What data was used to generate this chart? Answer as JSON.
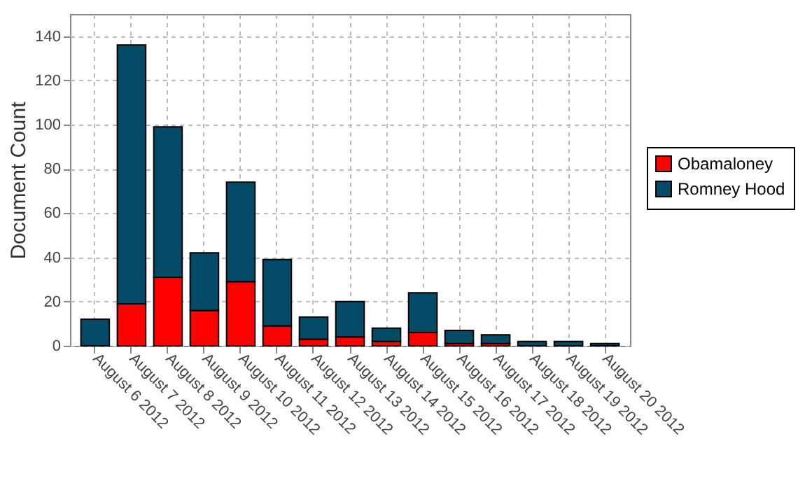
{
  "chart_data": {
    "type": "bar",
    "stacked": true,
    "ylabel": "Document Count",
    "categories": [
      "August 6 2012",
      "August 7 2012",
      "August 8 2012",
      "August 9 2012",
      "August 10 2012",
      "August 11 2012",
      "August 12 2012",
      "August 13 2012",
      "August 14 2012",
      "August 15 2012",
      "August 16 2012",
      "August 17 2012",
      "August 18 2012",
      "August 19 2012",
      "August 20 2012"
    ],
    "series": [
      {
        "name": "Obamaloney",
        "color": "#ff0000",
        "values": [
          null,
          19,
          31,
          16,
          29,
          9,
          3,
          4,
          2,
          6,
          1,
          1,
          null,
          null,
          null
        ]
      },
      {
        "name": "Romney Hood",
        "color": "#034a66",
        "values": [
          12,
          117,
          68,
          26,
          45,
          30,
          10,
          16,
          6,
          18,
          6,
          4,
          2,
          2,
          1
        ]
      }
    ],
    "ylim": [
      0,
      150
    ],
    "yticks": [
      0,
      20,
      40,
      60,
      80,
      100,
      120,
      140
    ],
    "grid": true,
    "legend": "right"
  }
}
